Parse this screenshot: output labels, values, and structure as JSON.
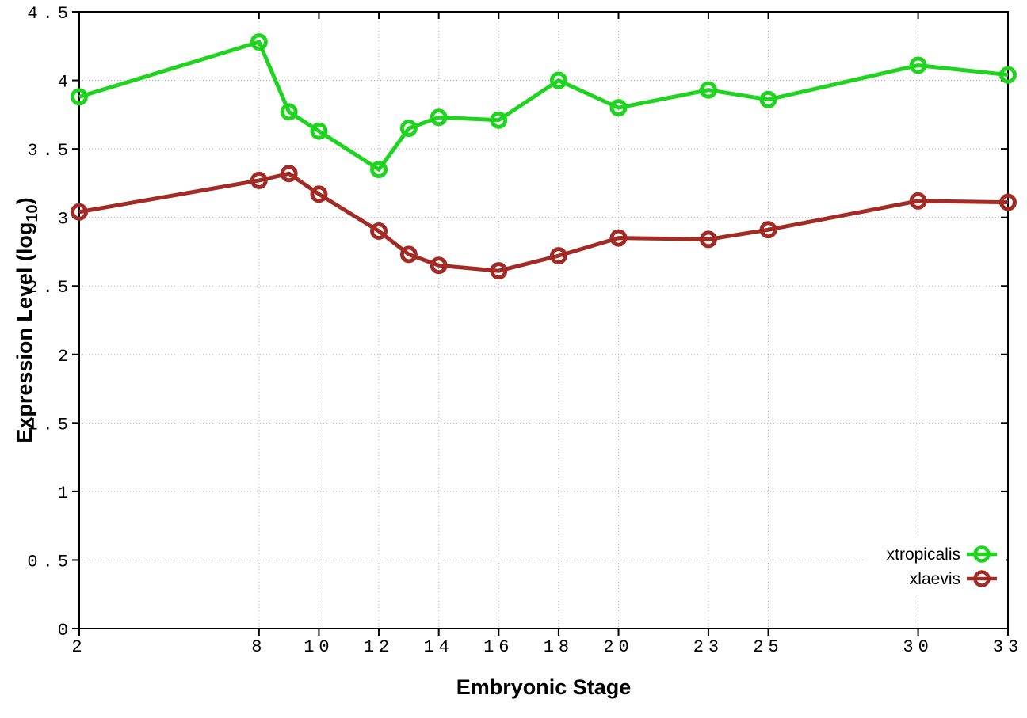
{
  "chart_data": {
    "type": "line",
    "title": "",
    "xlabel": "Embryonic Stage",
    "ylabel": "Expression Level (log10)",
    "ylabel_parts": {
      "prefix": "Expression Level (log",
      "subscript": "10",
      "suffix": ")"
    },
    "xlim": [
      2,
      33
    ],
    "ylim": [
      0,
      4.5
    ],
    "grid": true,
    "legend_position": "inside-bottom-right",
    "x": [
      2,
      8,
      9,
      10,
      12,
      13,
      14,
      16,
      18,
      20,
      23,
      25,
      30,
      33
    ],
    "xtick_values": [
      2,
      8,
      10,
      12,
      14,
      16,
      18,
      20,
      23,
      25,
      30,
      33
    ],
    "xtick_labels": [
      "2",
      "8",
      "10",
      "12",
      "14",
      "16",
      "18",
      "20",
      "23",
      "25",
      "30",
      "33"
    ],
    "ytick_values": [
      0,
      0.5,
      1,
      1.5,
      2,
      2.5,
      3,
      3.5,
      4,
      4.5
    ],
    "ytick_labels": [
      "0",
      "0.5",
      "1",
      "1.5",
      "2",
      "2.5",
      "3",
      "3.5",
      "4",
      "4.5"
    ],
    "series": [
      {
        "name": "xtropicalis",
        "color": "#1fd41f",
        "marker": "open-circle",
        "values": [
          3.88,
          4.28,
          3.77,
          3.63,
          3.35,
          3.65,
          3.73,
          3.71,
          4.0,
          3.8,
          3.93,
          3.86,
          4.11,
          4.04
        ]
      },
      {
        "name": "xlaevis",
        "color": "#a32b26",
        "marker": "open-circle",
        "values": [
          3.04,
          3.27,
          3.32,
          3.17,
          2.9,
          2.73,
          2.65,
          2.61,
          2.72,
          2.85,
          2.84,
          2.91,
          3.12,
          3.11
        ]
      }
    ]
  },
  "colors": {
    "background": "#ffffff",
    "border": "#000000",
    "grid": "#b0b0b0",
    "text": "#000000"
  }
}
